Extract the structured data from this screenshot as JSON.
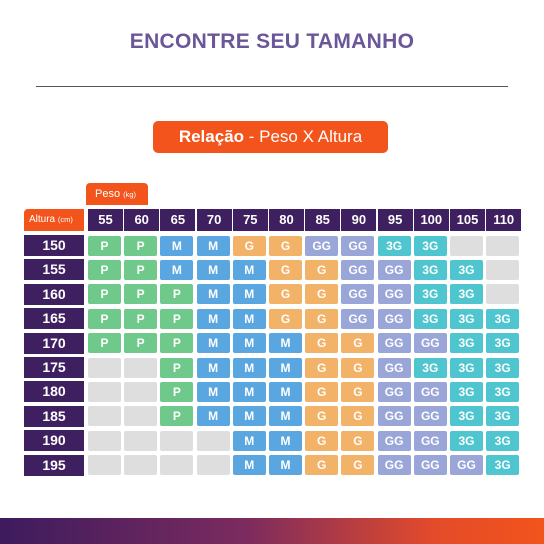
{
  "title": "ENCONTRE SEU TAMANHO",
  "relation": {
    "bold": "Relação",
    "rest": " - Peso X Altura"
  },
  "peso_label": {
    "text": "Peso",
    "unit": "(kg)"
  },
  "altura_label": {
    "text": "Altura",
    "unit": "(cm)"
  },
  "weights": [
    "55",
    "60",
    "65",
    "70",
    "75",
    "80",
    "85",
    "90",
    "95",
    "100",
    "105",
    "110"
  ],
  "rows": [
    {
      "height": "150",
      "sizes": [
        "P",
        "P",
        "M",
        "M",
        "G",
        "G",
        "GG",
        "GG",
        "3G",
        "3G",
        "",
        ""
      ]
    },
    {
      "height": "155",
      "sizes": [
        "P",
        "P",
        "M",
        "M",
        "M",
        "G",
        "G",
        "GG",
        "GG",
        "3G",
        "3G",
        ""
      ]
    },
    {
      "height": "160",
      "sizes": [
        "P",
        "P",
        "P",
        "M",
        "M",
        "G",
        "G",
        "GG",
        "GG",
        "3G",
        "3G",
        ""
      ]
    },
    {
      "height": "165",
      "sizes": [
        "P",
        "P",
        "P",
        "M",
        "M",
        "G",
        "G",
        "GG",
        "GG",
        "3G",
        "3G",
        "3G"
      ]
    },
    {
      "height": "170",
      "sizes": [
        "P",
        "P",
        "P",
        "M",
        "M",
        "M",
        "G",
        "G",
        "GG",
        "GG",
        "3G",
        "3G"
      ]
    },
    {
      "height": "175",
      "sizes": [
        "",
        "",
        "P",
        "M",
        "M",
        "M",
        "G",
        "G",
        "GG",
        "3G",
        "3G",
        "3G"
      ]
    },
    {
      "height": "180",
      "sizes": [
        "",
        "",
        "P",
        "M",
        "M",
        "M",
        "G",
        "G",
        "GG",
        "GG",
        "3G",
        "3G"
      ]
    },
    {
      "height": "185",
      "sizes": [
        "",
        "",
        "P",
        "M",
        "M",
        "M",
        "G",
        "G",
        "GG",
        "GG",
        "3G",
        "3G"
      ]
    },
    {
      "height": "190",
      "sizes": [
        "",
        "",
        "",
        "",
        "M",
        "M",
        "G",
        "G",
        "GG",
        "GG",
        "3G",
        "3G"
      ]
    },
    {
      "height": "195",
      "sizes": [
        "",
        "",
        "",
        "",
        "M",
        "M",
        "G",
        "G",
        "GG",
        "GG",
        "GG",
        "3G"
      ]
    }
  ],
  "colors": {
    "P": "#6ec98a",
    "M": "#5aa6e0",
    "G": "#f2b267",
    "GG": "#9aa6d8",
    "3G": "#4fc6cf",
    "empty": "#dedede",
    "header": "#3e1f5f",
    "accent": "#f2541b",
    "title": "#6b5699"
  }
}
